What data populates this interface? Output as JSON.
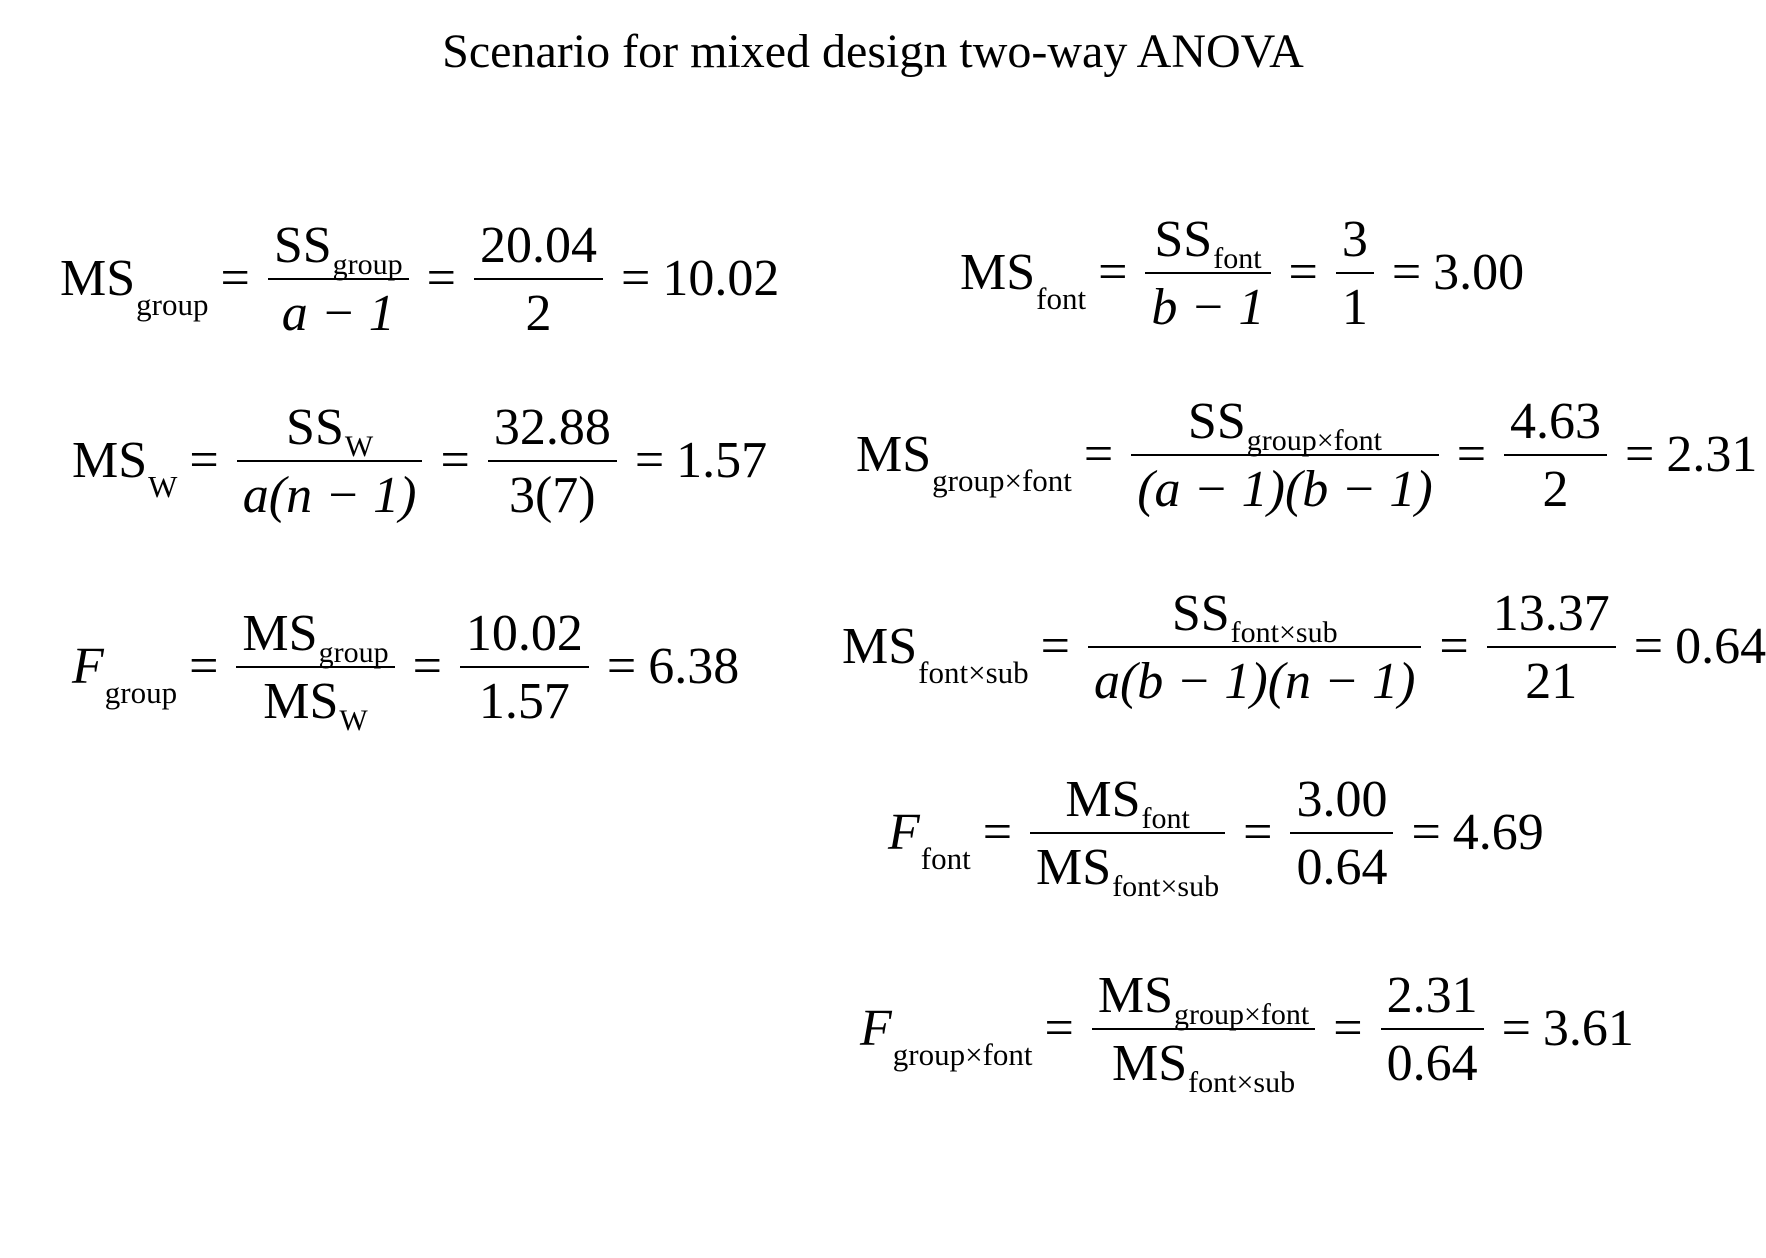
{
  "title": "Scenario for mixed design two-way ANOVA",
  "equations": {
    "ms_group": {
      "lhs": {
        "main": "MS",
        "sub": "group"
      },
      "formula": {
        "num_main": "SS",
        "num_sub": "group",
        "den": "a − 1"
      },
      "numeric": {
        "num": "20.04",
        "den": "2"
      },
      "result": "10.02"
    },
    "ms_w": {
      "lhs": {
        "main": "MS",
        "sub": "W"
      },
      "formula": {
        "num_main": "SS",
        "num_sub": "W",
        "den": "a(n − 1)"
      },
      "numeric": {
        "num": "32.88",
        "den": "3(7)"
      },
      "result": "1.57"
    },
    "f_group": {
      "lhs": {
        "main": "F",
        "sub": "group"
      },
      "formula": {
        "num_main": "MS",
        "num_sub": "group",
        "den_main": "MS",
        "den_sub": "W"
      },
      "numeric": {
        "num": "10.02",
        "den": "1.57"
      },
      "result": "6.38"
    },
    "ms_font": {
      "lhs": {
        "main": "MS",
        "sub": "font"
      },
      "formula": {
        "num_main": "SS",
        "num_sub": "font",
        "den": "b − 1"
      },
      "numeric": {
        "num": "3",
        "den": "1"
      },
      "result": "3.00"
    },
    "ms_group_font": {
      "lhs": {
        "main": "MS",
        "sub": "group×font"
      },
      "formula": {
        "num_main": "SS",
        "num_sub": "group×font",
        "den": "(a − 1)(b − 1)"
      },
      "numeric": {
        "num": "4.63",
        "den": "2"
      },
      "result": "2.31"
    },
    "ms_font_sub": {
      "lhs": {
        "main": "MS",
        "sub": "font×sub"
      },
      "formula": {
        "num_main": "SS",
        "num_sub": "font×sub",
        "den": "a(b − 1)(n − 1)"
      },
      "numeric": {
        "num": "13.37",
        "den": "21"
      },
      "result": "0.64"
    },
    "f_font": {
      "lhs": {
        "main": "F",
        "sub": "font"
      },
      "formula": {
        "num_main": "MS",
        "num_sub": "font",
        "den_main": "MS",
        "den_sub": "font×sub"
      },
      "numeric": {
        "num": "3.00",
        "den": "0.64"
      },
      "result": "4.69"
    },
    "f_group_font": {
      "lhs": {
        "main": "F",
        "sub": "group×font"
      },
      "formula": {
        "num_main": "MS",
        "num_sub": "group×font",
        "den_main": "MS",
        "den_sub": "font×sub"
      },
      "numeric": {
        "num": "2.31",
        "den": "0.64"
      },
      "result": "3.61"
    }
  },
  "symbols": {
    "equals": "="
  }
}
